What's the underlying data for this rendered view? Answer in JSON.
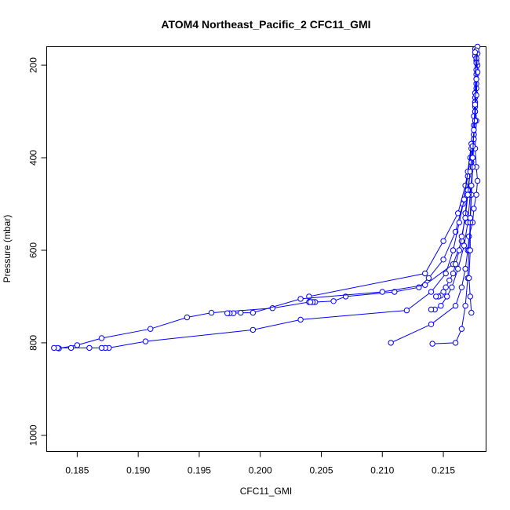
{
  "chart_data": {
    "type": "line",
    "title": "ATOM4 Northeast_Pacific_2 CFC11_GMI",
    "xlabel": "CFC11_GMI",
    "ylabel": "Pressure (mbar)",
    "xlim": [
      0.1825,
      0.2185
    ],
    "ylim": [
      1035,
      160
    ],
    "y_reversed": true,
    "grid": false,
    "xticks": [
      0.185,
      0.19,
      0.195,
      0.2,
      0.205,
      0.21,
      0.215
    ],
    "xtick_labels": [
      "0.185",
      "0.190",
      "0.195",
      "0.200",
      "0.205",
      "0.210",
      "0.215"
    ],
    "yticks": [
      200,
      400,
      600,
      800,
      1000
    ],
    "ytick_labels": [
      "200",
      "400",
      "600",
      "800",
      "1000"
    ],
    "series_color": "#0000ff",
    "series": [
      {
        "x": [
          0.2176,
          0.2177,
          0.2177,
          0.2176,
          0.2177,
          0.2176,
          0.2177,
          0.2178,
          0.2177,
          0.2175,
          0.2174,
          0.2171,
          0.217,
          0.2168,
          0.2165,
          0.216,
          0.214,
          0.2107
        ],
        "y": [
          165,
          190,
          230,
          280,
          320,
          380,
          420,
          450,
          480,
          510,
          540,
          570,
          600,
          640,
          680,
          720,
          760,
          800
        ]
      },
      {
        "x": [
          0.2177,
          0.2178,
          0.2177,
          0.2176,
          0.2175,
          0.2172,
          0.2168,
          0.2162,
          0.215,
          0.2135,
          0.204,
          0.204,
          0.201,
          0.196,
          0.194,
          0.191,
          0.187,
          0.185,
          0.1835
        ],
        "y": [
          170,
          200,
          250,
          300,
          350,
          400,
          460,
          520,
          580,
          650,
          700,
          712,
          725,
          735,
          745,
          770,
          790,
          805,
          812
        ]
      },
      {
        "x": [
          0.2178,
          0.2177,
          0.2176,
          0.2175,
          0.2173,
          0.217,
          0.2166,
          0.216,
          0.215,
          0.2138,
          0.213,
          0.211,
          0.207,
          0.206,
          0.2045,
          0.2043,
          0.2041
        ],
        "y": [
          175,
          220,
          270,
          330,
          380,
          440,
          500,
          560,
          620,
          660,
          680,
          690,
          700,
          710,
          712,
          712,
          712
        ]
      },
      {
        "x": [
          0.2176,
          0.2177,
          0.2176,
          0.2175,
          0.2173,
          0.217,
          0.2168,
          0.2165,
          0.2158,
          0.2135,
          0.21,
          0.2033,
          0.1994,
          0.1984,
          0.1978,
          0.1975,
          0.1973
        ],
        "y": [
          180,
          240,
          290,
          350,
          410,
          470,
          520,
          580,
          630,
          675,
          690,
          705,
          735,
          735,
          736,
          736,
          736
        ]
      },
      {
        "x": [
          0.2177,
          0.2176,
          0.2175,
          0.2173,
          0.217,
          0.2167,
          0.2163,
          0.2158,
          0.2152,
          0.214,
          0.212,
          0.2033,
          0.1994,
          0.1906,
          0.1876,
          0.1873,
          0.187,
          0.186,
          0.1845,
          0.1834,
          0.1831
        ],
        "y": [
          185,
          260,
          310,
          370,
          430,
          490,
          540,
          600,
          650,
          690,
          730,
          750,
          772,
          797,
          811,
          811,
          811,
          811,
          811,
          811,
          811
        ]
      },
      {
        "x": [
          0.2177,
          0.2176,
          0.2175,
          0.2174,
          0.2172,
          0.217,
          0.2167,
          0.2162,
          0.2157,
          0.2153,
          0.2148,
          0.2143,
          0.214
        ],
        "y": [
          195,
          280,
          350,
          420,
          480,
          540,
          590,
          640,
          680,
          700,
          720,
          728,
          728
        ]
      },
      {
        "x": [
          0.2178,
          0.2177,
          0.2176,
          0.2175,
          0.2174,
          0.2173,
          0.2172,
          0.2171,
          0.217,
          0.2168,
          0.2165,
          0.216,
          0.2141
        ],
        "y": [
          160,
          210,
          300,
          360,
          420,
          480,
          540,
          600,
          660,
          720,
          770,
          800,
          802
        ]
      },
      {
        "x": [
          0.2177,
          0.2178,
          0.2177,
          0.2176,
          0.2174,
          0.2172,
          0.217,
          0.2168,
          0.2165,
          0.2163,
          0.216,
          0.2158,
          0.2155,
          0.2152,
          0.215,
          0.2148,
          0.2146,
          0.2144
        ],
        "y": [
          168,
          215,
          265,
          320,
          375,
          430,
          480,
          530,
          570,
          600,
          630,
          650,
          665,
          680,
          690,
          698,
          700,
          700
        ]
      },
      {
        "x": [
          0.2176,
          0.2177,
          0.2176,
          0.2175,
          0.2174,
          0.2173,
          0.2172,
          0.2172,
          0.2171,
          0.2172,
          0.2173
        ],
        "y": [
          172,
          230,
          285,
          340,
          400,
          460,
          530,
          600,
          660,
          700,
          735
        ]
      }
    ]
  }
}
